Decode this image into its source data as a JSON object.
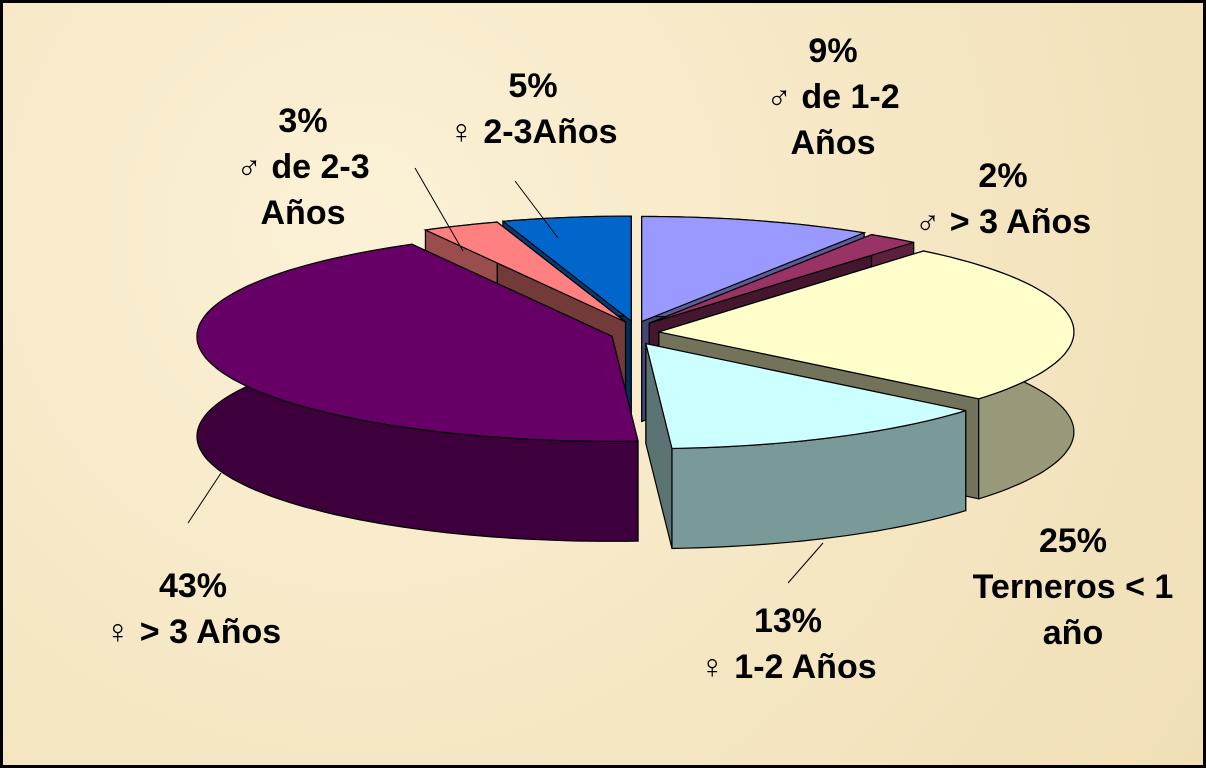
{
  "chart_data": {
    "type": "pie3d",
    "categories": [
      "♂ de 1-2 Años",
      "♂ > 3 Años",
      "Terneros < 1 año",
      "♀ 1-2 Años",
      "♀ > 3 Años",
      "♂ de 2-3 Años",
      "♀ 2-3Años"
    ],
    "values": [
      9,
      2,
      25,
      13,
      43,
      3,
      5
    ],
    "value_labels": [
      "9%",
      "2%",
      "25%",
      "13%",
      "43%",
      "3%",
      "5%"
    ],
    "colors": [
      "#9999ff",
      "#993366",
      "#ffffcc",
      "#ccffff",
      "#660066",
      "#ff8080",
      "#0066cc"
    ]
  }
}
